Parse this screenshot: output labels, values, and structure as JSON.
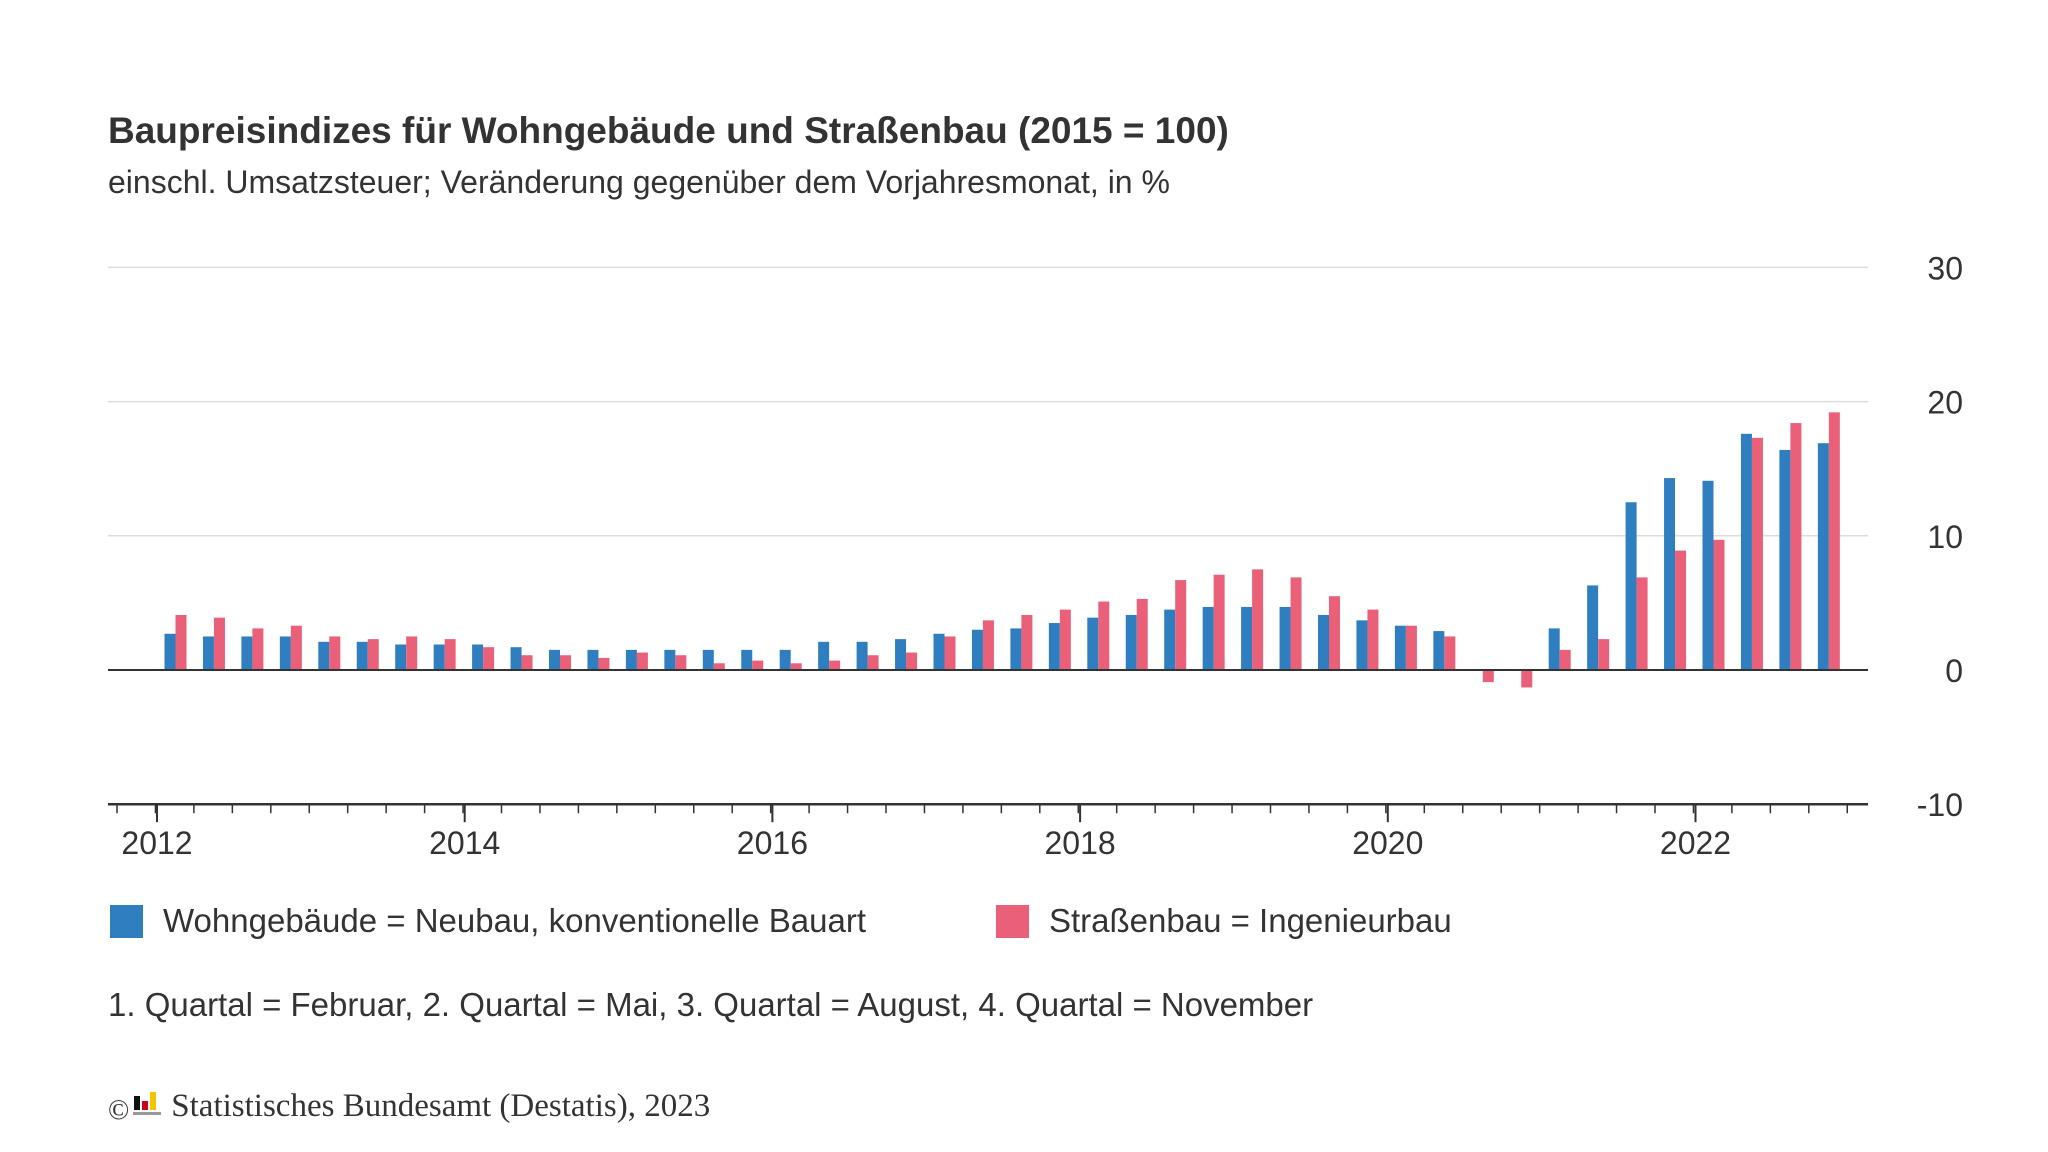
{
  "title": "Baupreisindizes für Wohngebäude und Straßenbau (2015 = 100)",
  "subtitle": "einschl. Umsatzsteuer; Veränderung gegenüber dem Vorjahresmonat, in %",
  "legend": {
    "wohngebaeude": "Wohngebäude = Neubau, konventionelle Bauart",
    "strassenbau": "Straßenbau = Ingenieurbau"
  },
  "note": "1. Quartal = Februar, 2. Quartal = Mai, 3. Quartal = August, 4. Quartal = November",
  "source": {
    "copyright": "©",
    "text": "Statistisches Bundesamt (Destatis), 2023",
    "logo_icon": "destatis-logo-icon"
  },
  "colors": {
    "wohngebaeude": "#2f7ebf",
    "strassenbau": "#ea6079",
    "grid": "#dddddd",
    "axis": "#333333"
  },
  "chart_data": {
    "type": "bar",
    "x_tick_labels": [
      "2012",
      "2014",
      "2016",
      "2018",
      "2020",
      "2022"
    ],
    "y_tick_labels": [
      "30",
      "20",
      "10",
      "0",
      "-10"
    ],
    "ylim": [
      -10,
      30
    ],
    "grid": true,
    "legend_position": "bottom",
    "categories": [
      "2012 Q1",
      "2012 Q2",
      "2012 Q3",
      "2012 Q4",
      "2013 Q1",
      "2013 Q2",
      "2013 Q3",
      "2013 Q4",
      "2014 Q1",
      "2014 Q2",
      "2014 Q3",
      "2014 Q4",
      "2015 Q1",
      "2015 Q2",
      "2015 Q3",
      "2015 Q4",
      "2016 Q1",
      "2016 Q2",
      "2016 Q3",
      "2016 Q4",
      "2017 Q1",
      "2017 Q2",
      "2017 Q3",
      "2017 Q4",
      "2018 Q1",
      "2018 Q2",
      "2018 Q3",
      "2018 Q4",
      "2019 Q1",
      "2019 Q2",
      "2019 Q3",
      "2019 Q4",
      "2020 Q1",
      "2020 Q2",
      "2020 Q3",
      "2020 Q4",
      "2021 Q1",
      "2021 Q2",
      "2021 Q3",
      "2021 Q4",
      "2022 Q1",
      "2022 Q2",
      "2022 Q3",
      "2022 Q4"
    ],
    "series": [
      {
        "name": "Wohngebäude = Neubau, konventionelle Bauart",
        "color": "#2f7ebf",
        "values": [
          2.7,
          2.5,
          2.5,
          2.5,
          2.1,
          2.1,
          1.9,
          1.9,
          1.9,
          1.7,
          1.5,
          1.5,
          1.5,
          1.5,
          1.5,
          1.5,
          1.5,
          2.1,
          2.1,
          2.3,
          2.7,
          3.0,
          3.1,
          3.5,
          3.9,
          4.1,
          4.5,
          4.7,
          4.7,
          4.7,
          4.1,
          3.7,
          3.3,
          2.9,
          0.0,
          0.0,
          3.1,
          6.3,
          12.5,
          14.3,
          14.1,
          17.6,
          16.4,
          16.9
        ]
      },
      {
        "name": "Straßenbau = Ingenieurbau",
        "color": "#ea6079",
        "values": [
          4.1,
          3.9,
          3.1,
          3.3,
          2.5,
          2.3,
          2.5,
          2.3,
          1.7,
          1.1,
          1.1,
          0.9,
          1.3,
          1.1,
          0.5,
          0.7,
          0.5,
          0.7,
          1.1,
          1.3,
          2.5,
          3.7,
          4.1,
          4.5,
          5.1,
          5.3,
          6.7,
          7.1,
          7.5,
          6.9,
          5.5,
          4.5,
          3.3,
          2.5,
          -0.9,
          -1.3,
          1.5,
          2.3,
          6.9,
          8.9,
          9.7,
          17.3,
          18.4,
          19.2
        ]
      }
    ]
  }
}
